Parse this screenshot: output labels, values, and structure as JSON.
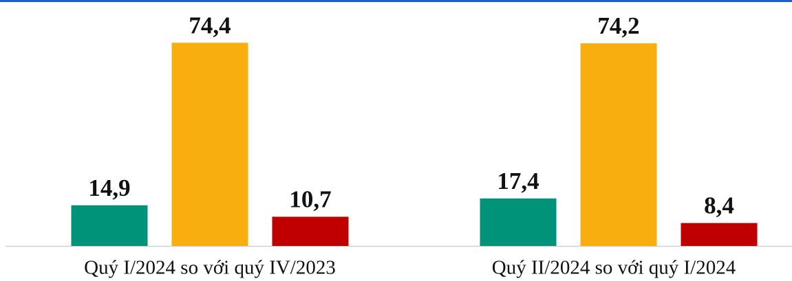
{
  "chart_data": {
    "type": "bar",
    "categories": [
      "Quý I/2024 so với quý IV/2023",
      "Quý II/2024 so với quý I/2024"
    ],
    "series": [
      {
        "color": "#00937a",
        "values": [
          14.9,
          17.4
        ],
        "value_labels": [
          "14,9",
          "17,4"
        ]
      },
      {
        "color": "#f9ae0f",
        "values": [
          74.4,
          74.2
        ],
        "value_labels": [
          "74,4",
          "74,2"
        ]
      },
      {
        "color": "#c00000",
        "values": [
          10.7,
          8.4
        ],
        "value_labels": [
          "10,7",
          "8,4"
        ]
      }
    ],
    "ylim": [
      0,
      80
    ]
  }
}
